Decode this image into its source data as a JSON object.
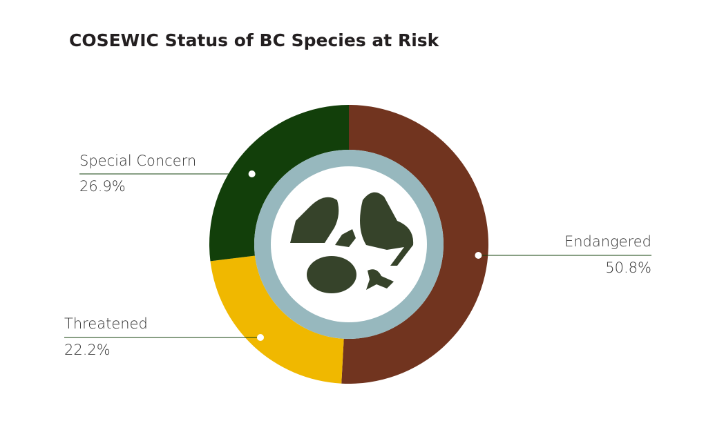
{
  "chart_data": {
    "type": "pie",
    "donut": true,
    "title": "COSEWIC Status of BC Species at Risk",
    "categories": [
      "Endangered",
      "Threatened",
      "Special Concern"
    ],
    "values": [
      50.8,
      22.2,
      26.9
    ],
    "value_labels": [
      "50.8%",
      "22.2%",
      "26.9%"
    ],
    "colors": [
      "#71341f",
      "#f0b800",
      "#123f0a"
    ]
  }
}
